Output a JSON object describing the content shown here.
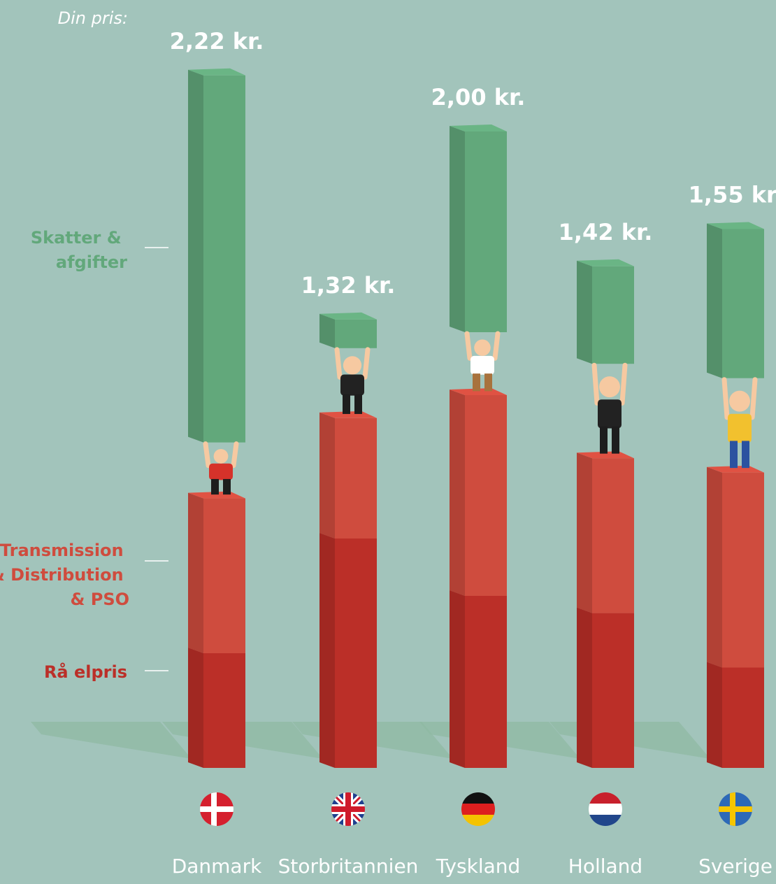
{
  "header": {
    "din_pris_label": "Din pris:"
  },
  "colors": {
    "background": "#a2c4bb",
    "taxes": "#62a87b",
    "transmission": "#cf4c3e",
    "raw_price": "#bb2f28",
    "shadow": "#8fbaa3"
  },
  "chart_data": {
    "type": "bar",
    "stacked": true,
    "categories": [
      "Danmark",
      "Storbritannien",
      "Tyskland",
      "Holland",
      "Sverige"
    ],
    "totals_labels": [
      "2,22 kr.",
      "1,32 kr.",
      "2,00 kr.",
      "1,42 kr.",
      "1,55 kr."
    ],
    "totals": [
      2.22,
      1.32,
      2.0,
      1.42,
      1.55
    ],
    "series": [
      {
        "name": "Rå elpris",
        "values": [
          0.4,
          0.8,
          0.6,
          0.54,
          0.35
        ]
      },
      {
        "name": "Transmission & Distribution & PSO",
        "values": [
          0.54,
          0.42,
          0.7,
          0.54,
          0.68
        ]
      },
      {
        "name": "Skatter & afgifter",
        "values": [
          1.28,
          0.1,
          0.7,
          0.34,
          0.52
        ]
      }
    ],
    "legend_lines": {
      "taxes": [
        "Skatter &",
        "afgifter"
      ],
      "transmission": [
        "Transmission",
        "& Distribution",
        "& PSO"
      ],
      "raw": [
        "Rå elpris"
      ]
    },
    "flag_icons": [
      "flag-denmark-icon",
      "flag-uk-icon",
      "flag-germany-icon",
      "flag-netherlands-icon",
      "flag-sweden-icon"
    ]
  }
}
